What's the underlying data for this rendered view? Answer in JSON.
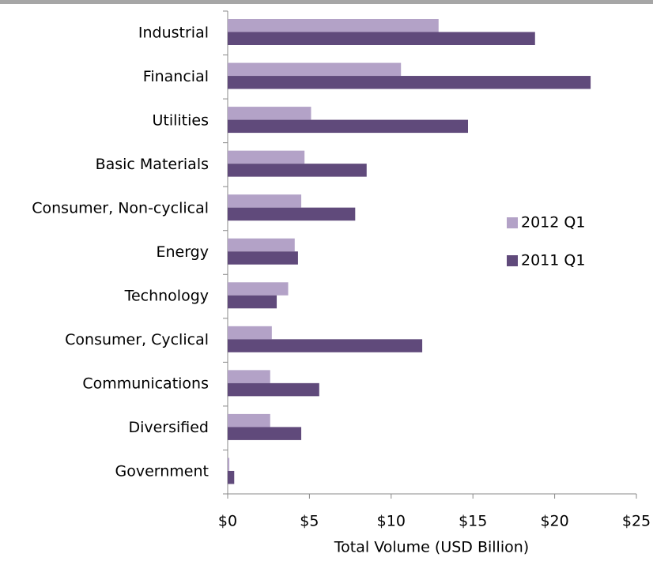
{
  "chart_data": {
    "type": "barh",
    "xlabel": "Total Volume (USD Billion)",
    "categories": [
      "Industrial",
      "Financial",
      "Utilities",
      "Basic Materials",
      "Consumer, Non-cyclical",
      "Energy",
      "Technology",
      "Consumer, Cyclical",
      "Communications",
      "Diversified",
      "Government"
    ],
    "series": [
      {
        "name": "2012 Q1",
        "color": "#b3a2c7",
        "values": [
          12.9,
          10.6,
          5.1,
          4.7,
          4.5,
          4.1,
          3.7,
          2.7,
          2.6,
          2.6,
          0.1
        ]
      },
      {
        "name": "2011 Q1",
        "color": "#604a7b",
        "values": [
          18.8,
          22.2,
          14.7,
          8.5,
          7.8,
          4.3,
          3.0,
          11.9,
          5.6,
          4.5,
          0.4
        ]
      }
    ],
    "xlim": [
      0,
      25
    ],
    "xticks": [
      {
        "value": 0,
        "label": "$0"
      },
      {
        "value": 5,
        "label": "$5"
      },
      {
        "value": 10,
        "label": "$10"
      },
      {
        "value": 15,
        "label": "$15"
      },
      {
        "value": 20,
        "label": "$20"
      },
      {
        "value": 25,
        "label": "$25"
      }
    ],
    "legend": "right"
  }
}
